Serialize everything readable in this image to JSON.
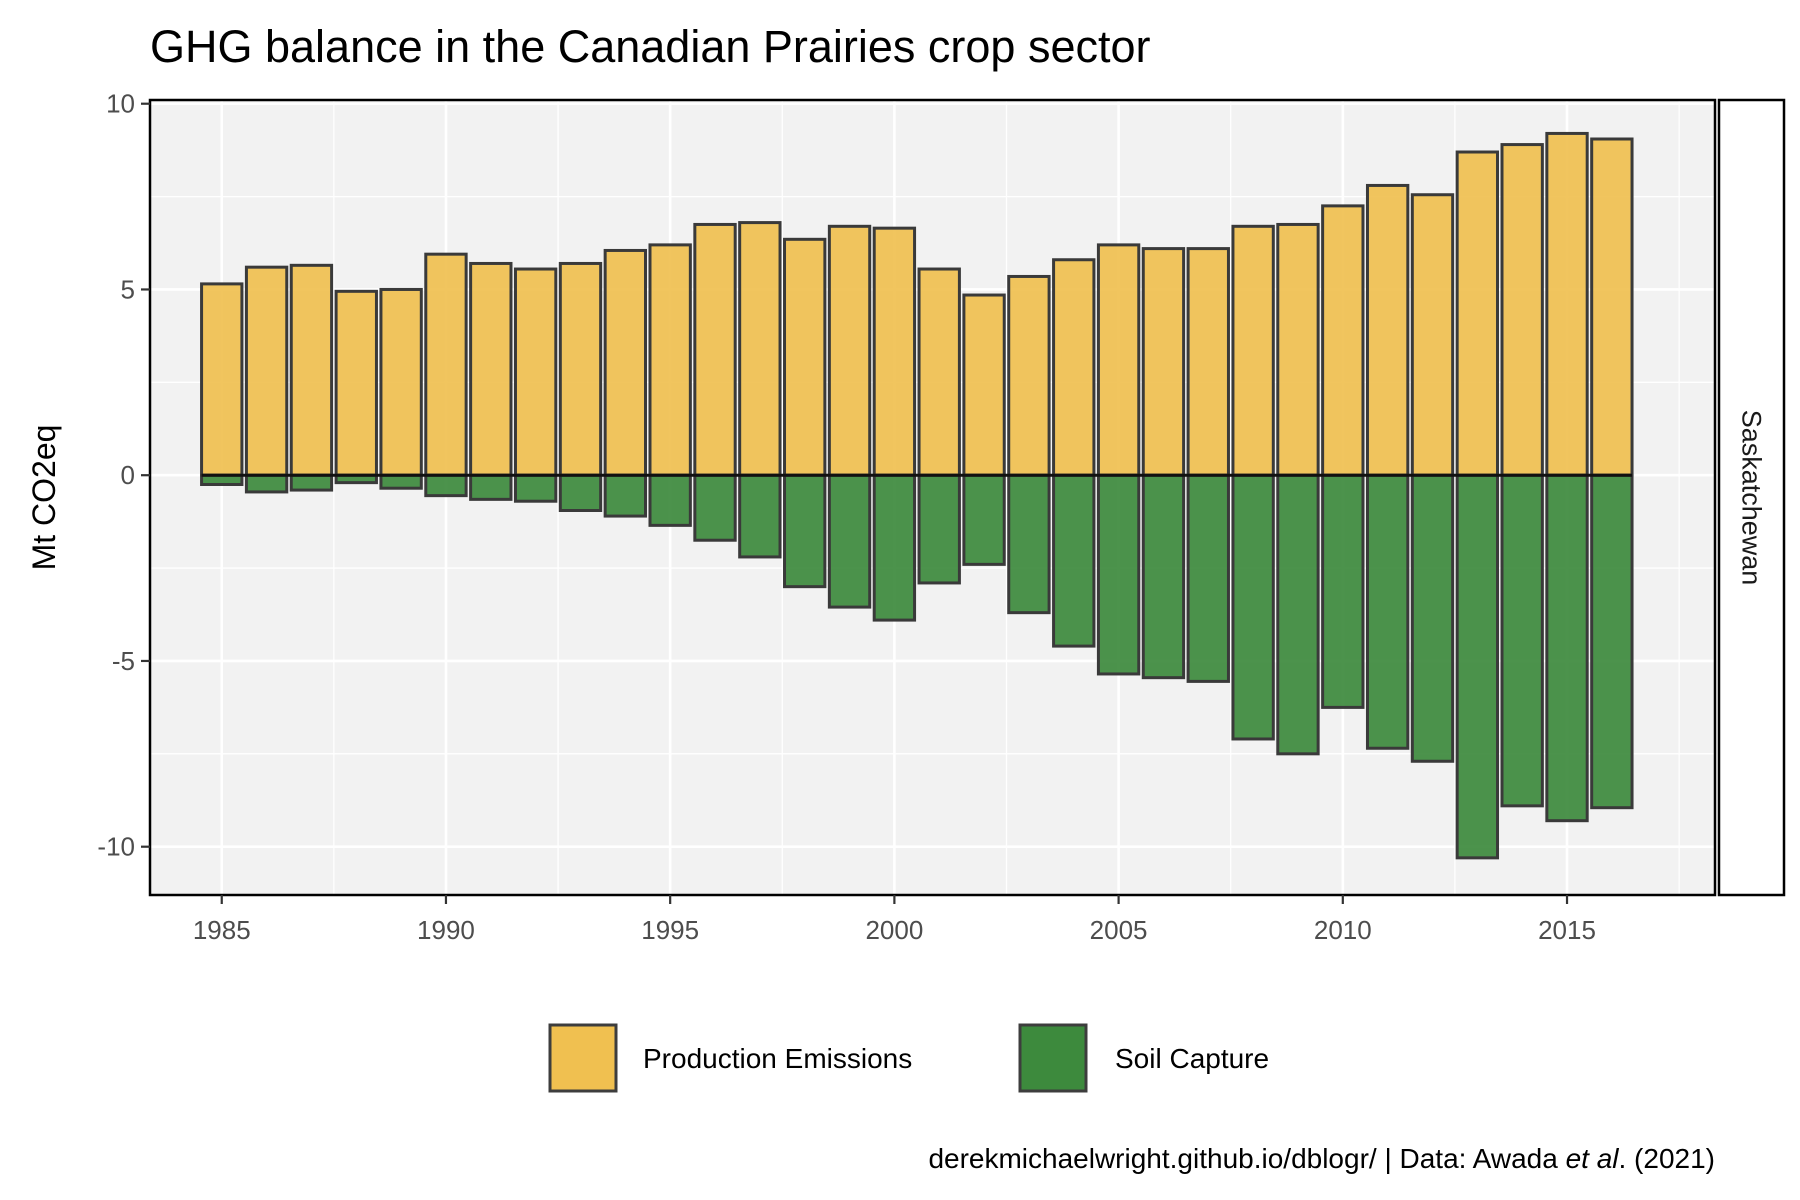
{
  "chart_data": {
    "type": "bar",
    "title": "GHG balance in the Canadian Prairies crop sector",
    "ylabel": "Mt CO2eq",
    "facet": "Saskatchewan",
    "ylim": [
      -11.3,
      10.1
    ],
    "xlim": [
      1983.4,
      2018.3
    ],
    "y_ticks": [
      10,
      5,
      0,
      -5,
      -10
    ],
    "y_tick_labels": [
      "10",
      "5",
      "0",
      "-5",
      "-10"
    ],
    "x_ticks": [
      1985,
      1990,
      1995,
      2000,
      2005,
      2010,
      2015
    ],
    "x_tick_labels": [
      "1985",
      "1990",
      "1995",
      "2000",
      "2005",
      "2010",
      "2015"
    ],
    "grid": true,
    "legend_position": "bottom",
    "x": [
      1985,
      1986,
      1987,
      1988,
      1989,
      1990,
      1991,
      1992,
      1993,
      1994,
      1995,
      1996,
      1997,
      1998,
      1999,
      2000,
      2001,
      2002,
      2003,
      2004,
      2005,
      2006,
      2007,
      2008,
      2009,
      2010,
      2011,
      2012,
      2013,
      2014,
      2015,
      2016
    ],
    "series": [
      {
        "name": "Production Emissions",
        "color": "#f0c050",
        "values": [
          5.15,
          5.6,
          5.65,
          4.95,
          5.0,
          5.95,
          5.7,
          5.55,
          5.7,
          6.05,
          6.2,
          6.75,
          6.8,
          6.35,
          6.7,
          6.65,
          5.55,
          4.85,
          5.35,
          5.8,
          6.2,
          6.1,
          6.1,
          6.7,
          6.75,
          7.25,
          7.8,
          7.55,
          8.7,
          8.9,
          9.2,
          9.05
        ]
      },
      {
        "name": "Soil Capture",
        "color": "#3d8a3d",
        "values": [
          -0.25,
          -0.45,
          -0.4,
          -0.2,
          -0.35,
          -0.55,
          -0.65,
          -0.7,
          -0.95,
          -1.1,
          -1.35,
          -1.75,
          -2.2,
          -3.0,
          -3.55,
          -3.9,
          -2.9,
          -2.4,
          -3.7,
          -4.6,
          -5.35,
          -5.45,
          -5.55,
          -7.1,
          -7.5,
          -6.25,
          -7.35,
          -7.7,
          -10.3,
          -8.9,
          -9.3,
          -8.95
        ]
      }
    ],
    "caption_prefix": "derekmichaelwright.github.io/dblogr/ | Data: Awada ",
    "caption_italic": "et al",
    "caption_suffix": ". (2021)"
  }
}
